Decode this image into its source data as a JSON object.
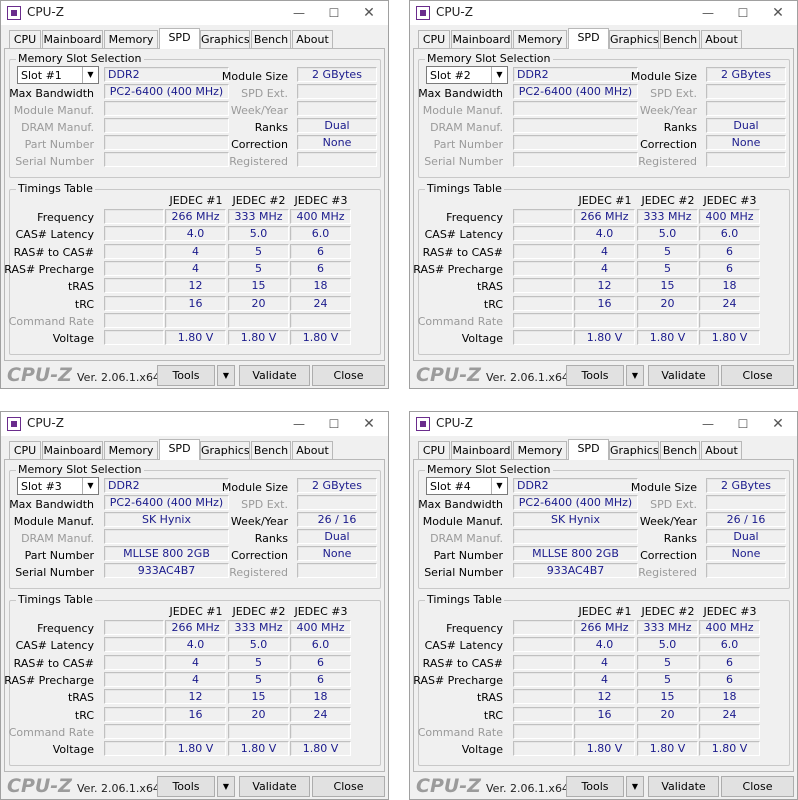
{
  "common": {
    "app_title": "CPU-Z",
    "tabs": [
      "CPU",
      "Mainboard",
      "Memory",
      "SPD",
      "Graphics",
      "Bench",
      "About"
    ],
    "active_tab": "SPD",
    "window_min_glyph": "—",
    "window_max_glyph": "☐",
    "window_close_glyph": "✕",
    "slot_group_label": "Memory Slot Selection",
    "timings_group_label": "Timings Table",
    "labels": {
      "max_bandwidth": "Max Bandwidth",
      "module_manuf": "Module Manuf.",
      "dram_manuf": "DRAM Manuf.",
      "part_number": "Part Number",
      "serial_number": "Serial Number",
      "module_size": "Module Size",
      "spd_ext": "SPD Ext.",
      "week_year": "Week/Year",
      "ranks": "Ranks",
      "correction": "Correction",
      "registered": "Registered"
    },
    "timing_columns": [
      "JEDEC #1",
      "JEDEC #2",
      "JEDEC #3"
    ],
    "timing_rows": [
      {
        "label": "Frequency",
        "values": [
          "266 MHz",
          "333 MHz",
          "400 MHz"
        ],
        "dim": false
      },
      {
        "label": "CAS# Latency",
        "values": [
          "4.0",
          "5.0",
          "6.0"
        ],
        "dim": false
      },
      {
        "label": "RAS# to CAS#",
        "values": [
          "4",
          "5",
          "6"
        ],
        "dim": false
      },
      {
        "label": "RAS# Precharge",
        "values": [
          "4",
          "5",
          "6"
        ],
        "dim": false
      },
      {
        "label": "tRAS",
        "values": [
          "12",
          "15",
          "18"
        ],
        "dim": false
      },
      {
        "label": "tRC",
        "values": [
          "16",
          "20",
          "24"
        ],
        "dim": false
      },
      {
        "label": "Command Rate",
        "values": [
          "",
          "",
          ""
        ],
        "dim": true
      },
      {
        "label": "Voltage",
        "values": [
          "1.80 V",
          "1.80 V",
          "1.80 V"
        ],
        "dim": false
      }
    ],
    "brand": "CPU-Z",
    "version": "Ver. 2.06.1.x64",
    "tools_label": "Tools",
    "tools_arrow": "▼",
    "select_arrow": "▼",
    "validate_label": "Validate",
    "close_label": "Close"
  },
  "windows": [
    {
      "slot": "Slot #1",
      "type": "DDR2",
      "max_bandwidth": "PC2-6400 (400 MHz)",
      "module_size": "2 GBytes",
      "module_manuf": "",
      "week_year": "",
      "ranks": "Dual",
      "dram_manuf": "",
      "correction": "None",
      "part_number": "",
      "serial_number": ""
    },
    {
      "slot": "Slot #2",
      "type": "DDR2",
      "max_bandwidth": "PC2-6400 (400 MHz)",
      "module_size": "2 GBytes",
      "module_manuf": "",
      "week_year": "",
      "ranks": "Dual",
      "dram_manuf": "",
      "correction": "None",
      "part_number": "",
      "serial_number": ""
    },
    {
      "slot": "Slot #3",
      "type": "DDR2",
      "max_bandwidth": "PC2-6400 (400 MHz)",
      "module_size": "2 GBytes",
      "module_manuf": "SK Hynix",
      "week_year": "26 / 16",
      "ranks": "Dual",
      "dram_manuf": "",
      "correction": "None",
      "part_number": "MLLSE 800 2GB",
      "serial_number": "933AC4B7"
    },
    {
      "slot": "Slot #4",
      "type": "DDR2",
      "max_bandwidth": "PC2-6400 (400 MHz)",
      "module_size": "2 GBytes",
      "module_manuf": "SK Hynix",
      "week_year": "26 / 16",
      "ranks": "Dual",
      "dram_manuf": "",
      "correction": "None",
      "part_number": "MLLSE 800 2GB",
      "serial_number": "933AC4B7"
    }
  ]
}
